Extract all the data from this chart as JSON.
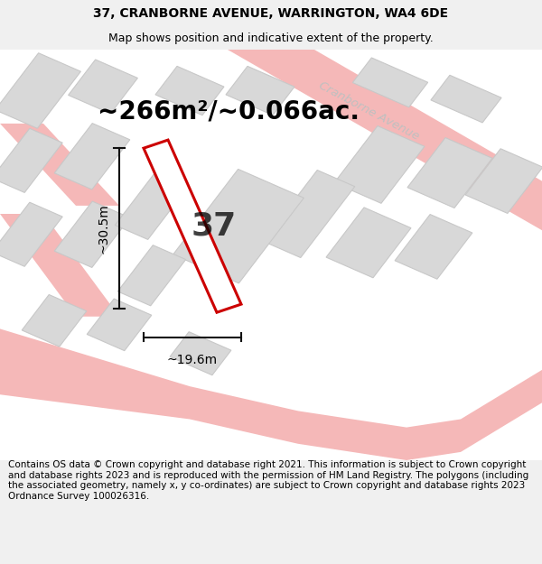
{
  "title_line1": "37, CRANBORNE AVENUE, WARRINGTON, WA4 6DE",
  "title_line2": "Map shows position and indicative extent of the property.",
  "area_text": "~266m²/~0.066ac.",
  "number_label": "37",
  "width_label": "~19.6m",
  "height_label": "~30.5m",
  "street_label": "Cranborne Avenue",
  "footer_text": "Contains OS data © Crown copyright and database right 2021. This information is subject to Crown copyright and database rights 2023 and is reproduced with the permission of HM Land Registry. The polygons (including the associated geometry, namely x, y co-ordinates) are subject to Crown copyright and database rights 2023 Ordnance Survey 100026316.",
  "bg_color": "#f0f0f0",
  "map_bg": "#ffffff",
  "property_color": "#cc0000",
  "road_color": "#f5b8b8",
  "building_color": "#d8d8d8",
  "building_border": "#c8c8c8",
  "street_label_color": "#c0c0c0",
  "dim_line_color": "#111111",
  "title_fontsize": 10,
  "subtitle_fontsize": 9,
  "area_fontsize": 20,
  "number_fontsize": 26,
  "dim_fontsize": 10,
  "street_fontsize": 9.5,
  "footer_fontsize": 7.5
}
